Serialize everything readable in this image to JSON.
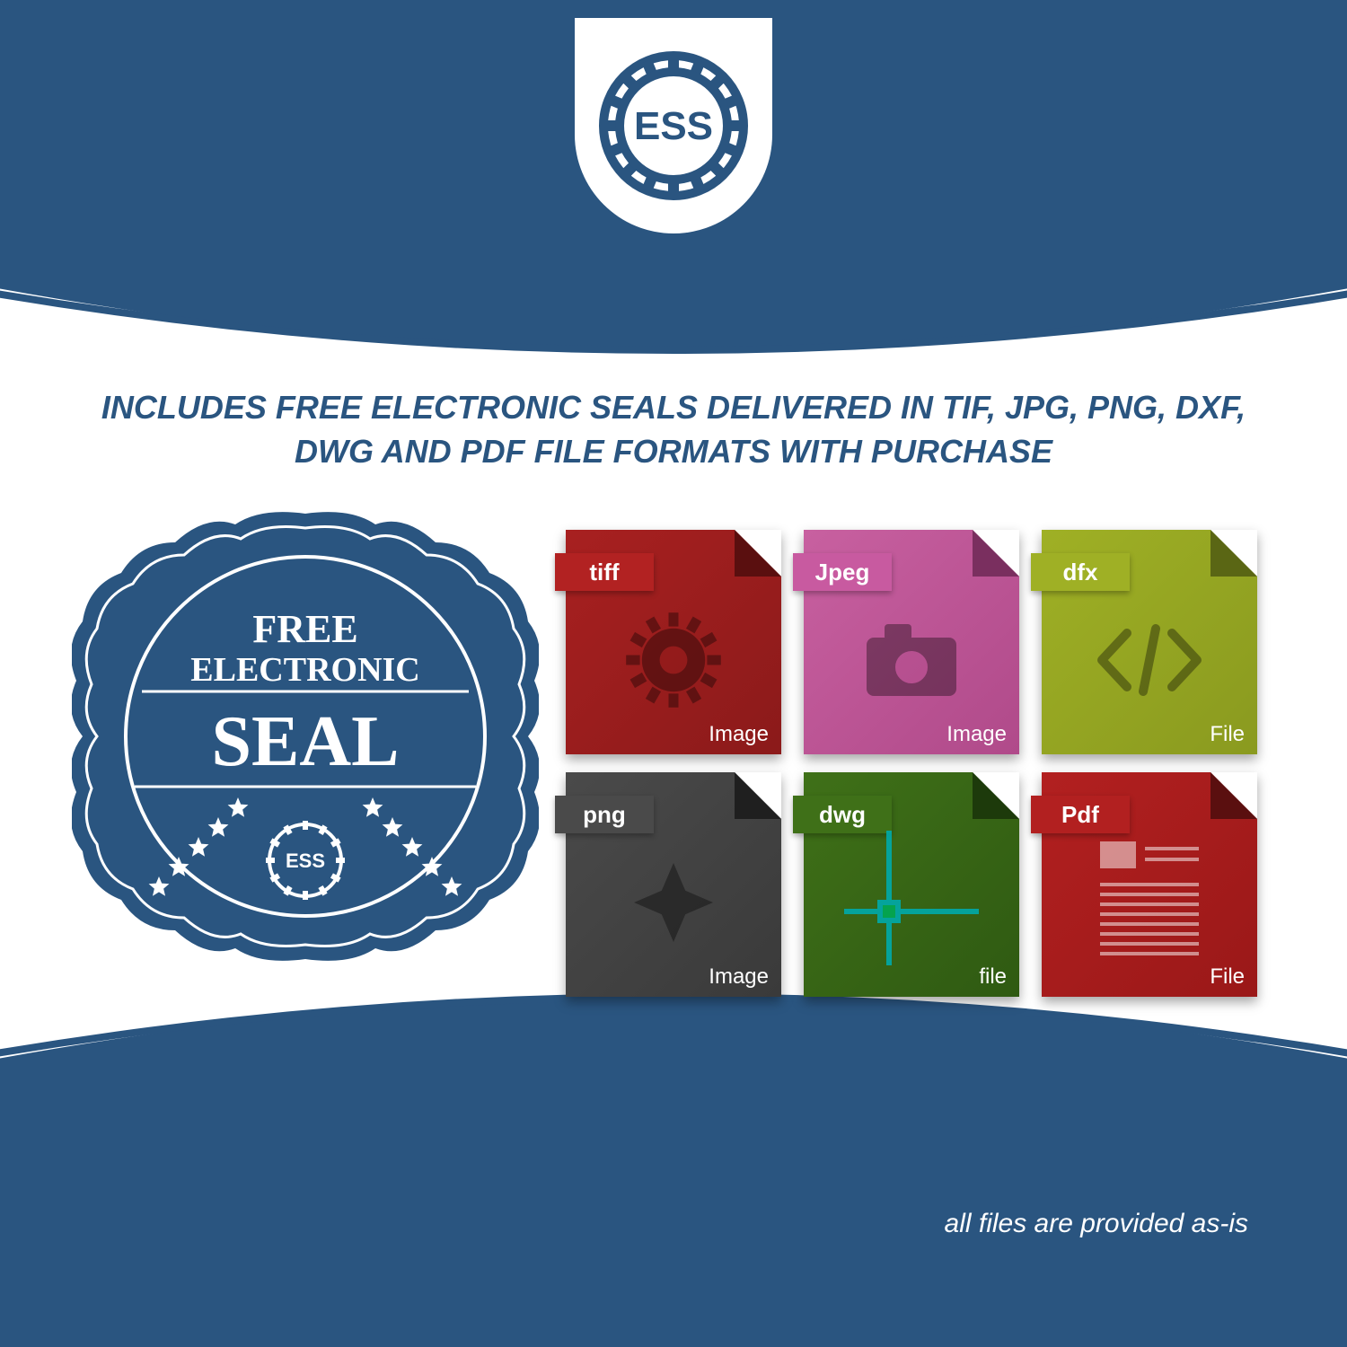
{
  "colors": {
    "brand_blue": "#2a5580",
    "white": "#ffffff"
  },
  "logo": {
    "text": "ESS",
    "gear_color": "#2a5580",
    "text_color": "#2a5580"
  },
  "headline": "INCLUDES FREE ELECTRONIC SEALS DELIVERED IN TIF, JPG, PNG, DXF, DWG AND PDF FILE FORMATS WITH PURCHASE",
  "seal_badge": {
    "line1": "FREE",
    "line2": "ELECTRONIC",
    "line3": "SEAL",
    "gear_text": "ESS",
    "background": "#2a5580",
    "text_color": "#ffffff",
    "star_count": 10
  },
  "file_icons": [
    {
      "tab_label": "tiff",
      "footer_label": "Image",
      "body_color": "#8b1a1a",
      "body_color_light": "#a82020",
      "tab_color": "#b22222",
      "fold_color": "#5a0f0f",
      "motif": "gear"
    },
    {
      "tab_label": "Jpeg",
      "footer_label": "Image",
      "body_color": "#b04a8a",
      "body_color_light": "#c860a0",
      "tab_color": "#c85aa0",
      "fold_color": "#7a2f5f",
      "motif": "camera"
    },
    {
      "tab_label": "dfx",
      "footer_label": "File",
      "body_color": "#8a9a1f",
      "body_color_light": "#9fb025",
      "tab_color": "#9fb025",
      "fold_color": "#5a6614",
      "motif": "code"
    },
    {
      "tab_label": "png",
      "footer_label": "Image",
      "body_color": "#3a3a3a",
      "body_color_light": "#4a4a4a",
      "tab_color": "#4a4a4a",
      "fold_color": "#1f1f1f",
      "motif": "starburst"
    },
    {
      "tab_label": "dwg",
      "footer_label": "file",
      "body_color": "#2f5a12",
      "body_color_light": "#3f7018",
      "tab_color": "#3f7018",
      "fold_color": "#1d3a0b",
      "motif": "crosshair"
    },
    {
      "tab_label": "Pdf",
      "footer_label": "File",
      "body_color": "#9a1818",
      "body_color_light": "#b22020",
      "tab_color": "#b22020",
      "fold_color": "#5a0f0f",
      "motif": "document"
    }
  ],
  "footer_note": "all files are provided as-is"
}
